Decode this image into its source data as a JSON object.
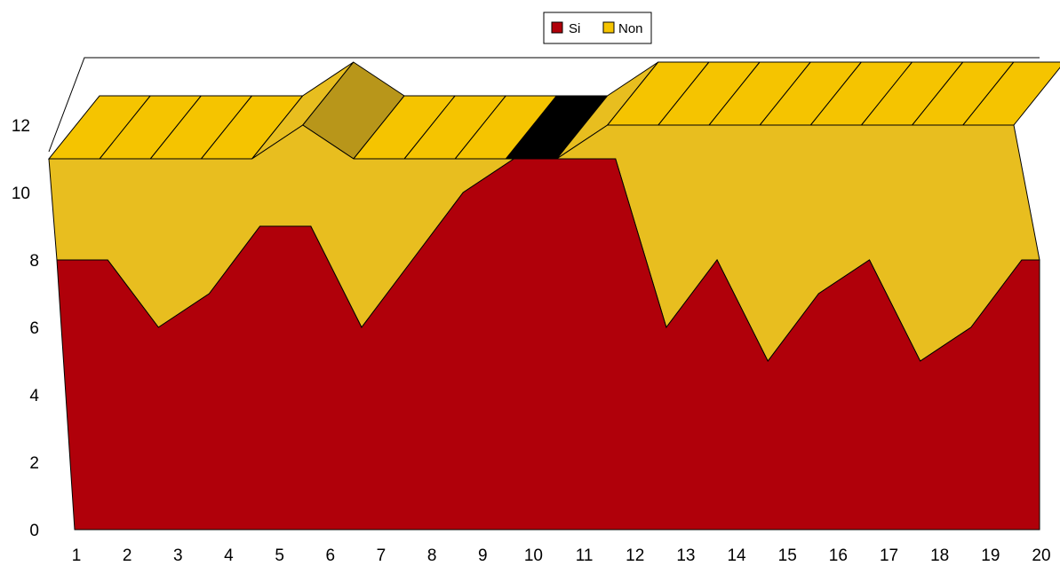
{
  "chart_data": {
    "type": "area",
    "stacked": true,
    "three_d": true,
    "title": "",
    "xlabel": "",
    "ylabel": "",
    "x": [
      "1",
      "2",
      "3",
      "4",
      "5",
      "6",
      "7",
      "8",
      "9",
      "10",
      "11",
      "12",
      "13",
      "14",
      "15",
      "16",
      "17",
      "18",
      "19",
      "20"
    ],
    "ylim": [
      0,
      12
    ],
    "y_ticks": [
      "0",
      "2",
      "4",
      "6",
      "8",
      "10",
      "12"
    ],
    "grid": false,
    "legend_position": "top-center",
    "series": [
      {
        "name": "Si",
        "color": "#b0000a",
        "values": [
          8,
          8,
          6,
          7,
          9,
          9,
          6,
          8,
          10,
          11,
          11,
          11,
          6,
          8,
          5,
          7,
          8,
          5,
          6,
          8
        ]
      },
      {
        "name": "Non",
        "color": "#f5c400",
        "values": [
          3,
          3,
          5,
          4,
          2,
          3,
          5,
          3,
          1,
          0,
          0,
          1,
          6,
          4,
          7,
          5,
          4,
          7,
          6,
          4
        ]
      }
    ]
  }
}
